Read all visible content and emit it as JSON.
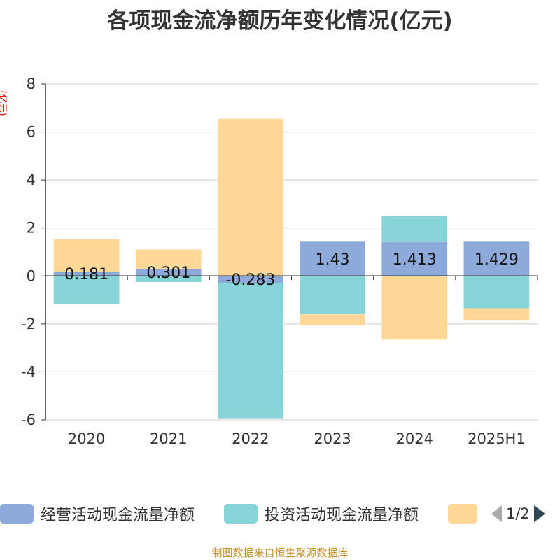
{
  "title": "各项现金流净额历年变化情况(亿元)",
  "source_text": "制图数据来自恒生聚源数据库",
  "colors": {
    "operating": "#8eaadb",
    "investing": "#86d4d8",
    "financing": "#ffd898",
    "axis": "#333333",
    "grid": "#cccccc"
  },
  "legend": {
    "items": [
      {
        "label": "经营活动现金流量净额",
        "color": "#8eaadb"
      },
      {
        "label": "投资活动现金流量净额",
        "color": "#86d4d8"
      },
      {
        "label": "",
        "color": "#ffd898"
      }
    ],
    "page_text": "1/2",
    "prev_icon": "triangle-left-icon",
    "next_icon": "triangle-right-icon"
  },
  "chart_data": {
    "type": "bar",
    "stacked": true,
    "title": "各项现金流净额历年变化情况(亿元)",
    "ylabel": "(亿元)",
    "xlabel": "",
    "ylim": [
      -6,
      8
    ],
    "yticks": [
      -6,
      -4,
      -2,
      0,
      2,
      4,
      6,
      8
    ],
    "grid": true,
    "legend_position": "bottom",
    "categories": [
      "2020",
      "2021",
      "2022",
      "2023",
      "2024",
      "2025H1"
    ],
    "series": [
      {
        "name": "经营活动现金流量净额",
        "values": [
          0.181,
          0.301,
          -0.283,
          1.43,
          1.413,
          1.429
        ],
        "labels": [
          "0.181",
          "0.301",
          "-0.283",
          "1.43",
          "1.413",
          "1.429"
        ]
      },
      {
        "name": "投资活动现金流量净额",
        "values": [
          -1.17,
          -0.25,
          -5.65,
          -1.6,
          1.08,
          -1.35
        ]
      },
      {
        "values": [
          1.35,
          0.8,
          6.55,
          -0.45,
          -2.65,
          -0.48
        ]
      }
    ]
  }
}
